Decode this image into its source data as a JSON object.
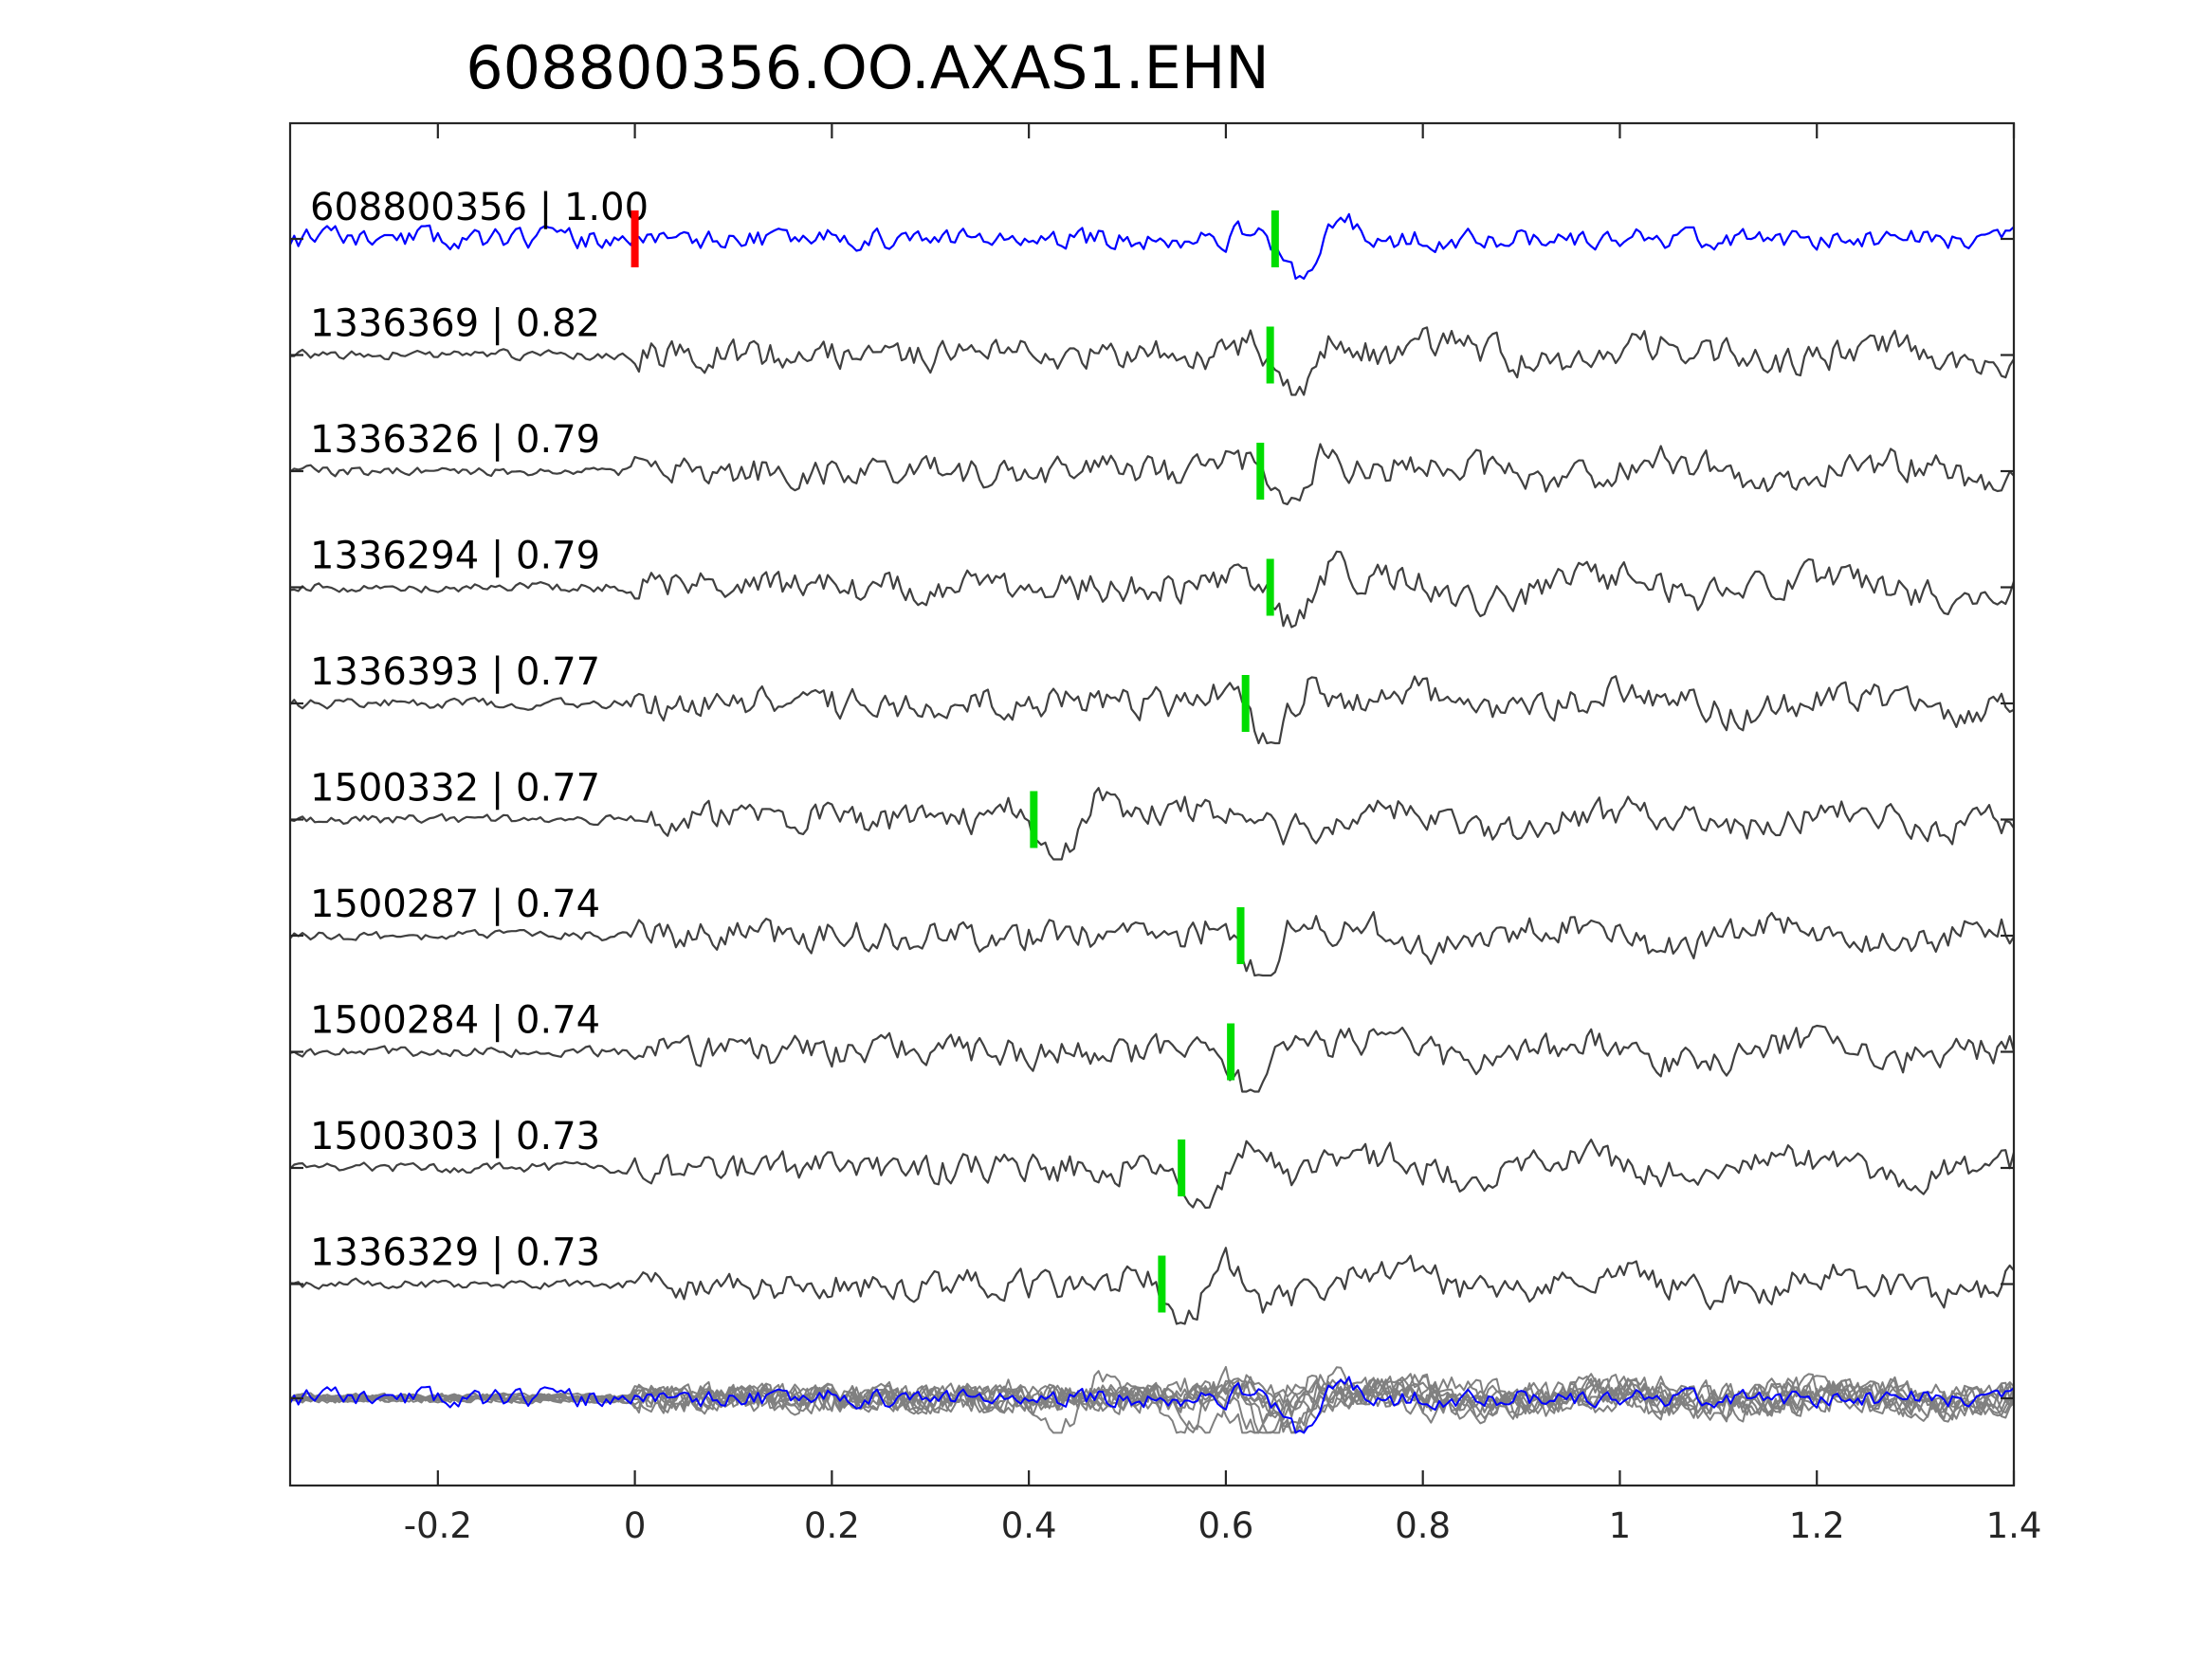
{
  "chart_data": {
    "type": "line",
    "title": "608800356.OO.AXAS1.EHN",
    "xlabel": "",
    "ylabel": "",
    "xlim": [
      -0.35,
      1.4
    ],
    "xticks": [
      -0.2,
      0,
      0.2,
      0.4,
      0.6,
      0.8,
      1,
      1.2,
      1.4
    ],
    "xtick_labels": [
      "-0.2",
      "0",
      "0.2",
      "0.4",
      "0.6",
      "0.8",
      "1",
      "1.2",
      "1.4"
    ],
    "grid": false,
    "colors": {
      "template": "#0000ff",
      "match": "#404040",
      "overlay": "#808080",
      "reference_pick": "#ff0000",
      "phase_pick": "#00dd00"
    },
    "reference_pick_time": 0.0,
    "series": [
      {
        "label": "608800356 | 1.00",
        "pick": 0.65,
        "template": true,
        "seed": 11
      },
      {
        "label": "1336369 | 0.82",
        "pick": 0.645,
        "seed": 23
      },
      {
        "label": "1336326 | 0.79",
        "pick": 0.635,
        "seed": 37
      },
      {
        "label": "1336294 | 0.79",
        "pick": 0.645,
        "seed": 41
      },
      {
        "label": "1336393 | 0.77",
        "pick": 0.62,
        "seed": 53
      },
      {
        "label": "1500332 | 0.77",
        "pick": 0.405,
        "seed": 67
      },
      {
        "label": "1500287 | 0.74",
        "pick": 0.615,
        "seed": 71
      },
      {
        "label": "1500284 | 0.74",
        "pick": 0.605,
        "seed": 83
      },
      {
        "label": "1500303 | 0.73",
        "pick": 0.555,
        "seed": 97
      },
      {
        "label": "1336329 | 0.73",
        "pick": 0.535,
        "seed": 109
      }
    ]
  }
}
